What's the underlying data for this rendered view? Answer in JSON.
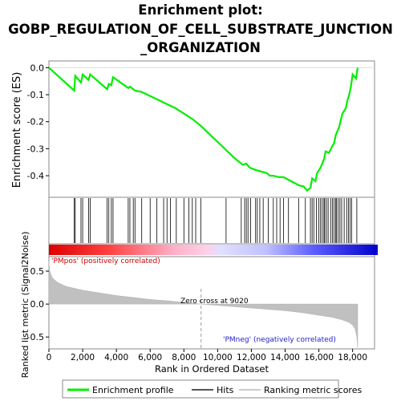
{
  "chart_data": {
    "type": "line",
    "title_lines": [
      "Enrichment plot:",
      "GOBP_REGULATION_OF_CELL_SUBSTRATE_JUNCTION",
      "_ORGANIZATION"
    ],
    "es_panel": {
      "ylabel": "Enrichment score (ES)",
      "yticks": [
        "0.0",
        "-0.1",
        "-0.2",
        "-0.3",
        "-0.4"
      ],
      "ytick_values": [
        0.0,
        -0.1,
        -0.2,
        -0.3,
        -0.4
      ],
      "ylim": [
        -0.48,
        0.025
      ],
      "xlim": [
        0,
        19300
      ],
      "line_color": "#00ee00",
      "series": [
        {
          "x": [
            0,
            1500,
            1560,
            1900,
            2000,
            2350,
            2450,
            3450,
            3550,
            3700,
            3800,
            4700,
            4800,
            5000,
            5100,
            5500,
            6000,
            6500,
            7000,
            7500,
            8000,
            8500,
            9000,
            9500,
            10000,
            10500,
            11000,
            11500,
            11700,
            11900,
            12100,
            12300,
            12600,
            12900,
            13100,
            13300,
            13600,
            13900,
            14200,
            14500,
            14800,
            15100,
            15300,
            15500,
            15600,
            15800,
            15900,
            16100,
            16300,
            16400,
            16600,
            16800,
            16900,
            17000,
            17200,
            17400,
            17600,
            17700,
            17800,
            17900,
            18000,
            18200,
            18300
          ],
          "y": [
            0.0,
            -0.085,
            -0.03,
            -0.055,
            -0.025,
            -0.045,
            -0.025,
            -0.08,
            -0.06,
            -0.065,
            -0.035,
            -0.075,
            -0.07,
            -0.08,
            -0.085,
            -0.09,
            -0.105,
            -0.12,
            -0.135,
            -0.15,
            -0.17,
            -0.19,
            -0.215,
            -0.245,
            -0.275,
            -0.305,
            -0.335,
            -0.36,
            -0.355,
            -0.37,
            -0.375,
            -0.38,
            -0.385,
            -0.39,
            -0.4,
            -0.4,
            -0.405,
            -0.405,
            -0.415,
            -0.425,
            -0.435,
            -0.44,
            -0.455,
            -0.445,
            -0.41,
            -0.42,
            -0.39,
            -0.37,
            -0.34,
            -0.31,
            -0.315,
            -0.29,
            -0.28,
            -0.25,
            -0.22,
            -0.17,
            -0.15,
            -0.12,
            -0.1,
            -0.07,
            -0.025,
            -0.04,
            0.0
          ]
        }
      ]
    },
    "hits_panel": {
      "hit_positions": [
        1500,
        1560,
        1900,
        2000,
        2350,
        2450,
        3450,
        3550,
        3700,
        3800,
        4700,
        4800,
        5000,
        5100,
        5500,
        6000,
        6400,
        6800,
        7000,
        7200,
        7550,
        8000,
        8300,
        8500,
        8700,
        9000,
        10500,
        11400,
        11600,
        11700,
        11800,
        11950,
        12250,
        12350,
        12500,
        12700,
        13000,
        13300,
        13500,
        13700,
        13900,
        14200,
        14800,
        15200,
        15500,
        15600,
        15700,
        15850,
        16000,
        16100,
        16200,
        16300,
        16350,
        16450,
        16550,
        16700,
        16800,
        16900,
        17000,
        17050,
        17150,
        17250,
        17350,
        17500,
        17650,
        17750,
        17850,
        17950,
        18250
      ]
    },
    "color_bar": {
      "pos_label": "'PMpos' (positively correlated)",
      "neg_label": "'PMneg' (negatively correlated)"
    },
    "metric_panel": {
      "ylabel": "Ranked list metric (Signal2Noise)",
      "yticks": [
        "0.5",
        "0.0",
        "-0.5"
      ],
      "ytick_values": [
        0.5,
        0.0,
        -0.5
      ],
      "ylim": [
        -0.68,
        0.72
      ],
      "zero_cross_label": "Zero cross at 9020",
      "zero_cross": 9020,
      "metric_curve": {
        "x": [
          0,
          50,
          200,
          500,
          1000,
          2000,
          3000,
          4000,
          5000,
          6000,
          7000,
          8000,
          9020,
          10000,
          11000,
          12000,
          13000,
          14000,
          15000,
          16000,
          16800,
          17400,
          17800,
          18000,
          18150,
          18250,
          18300
        ],
        "y": [
          0.65,
          0.5,
          0.4,
          0.33,
          0.27,
          0.21,
          0.17,
          0.13,
          0.1,
          0.07,
          0.05,
          0.025,
          0.0,
          -0.02,
          -0.04,
          -0.06,
          -0.08,
          -0.1,
          -0.13,
          -0.17,
          -0.2,
          -0.24,
          -0.28,
          -0.32,
          -0.38,
          -0.5,
          -0.66
        ]
      }
    },
    "xaxis": {
      "xlabel": "Rank in Ordered Dataset",
      "ticks": [
        "0",
        "2,000",
        "4,000",
        "6,000",
        "8,000",
        "10,000",
        "12,000",
        "14,000",
        "16,000",
        "18,000"
      ],
      "tick_values": [
        0,
        2000,
        4000,
        6000,
        8000,
        10000,
        12000,
        14000,
        16000,
        18000
      ]
    },
    "legend": {
      "placement": "bottom",
      "items": [
        {
          "label": "Enrichment profile",
          "color": "#00ee00"
        },
        {
          "label": "Hits",
          "color": "#555555"
        },
        {
          "label": "Ranking metric scores",
          "color": "#cccccc"
        }
      ]
    }
  }
}
